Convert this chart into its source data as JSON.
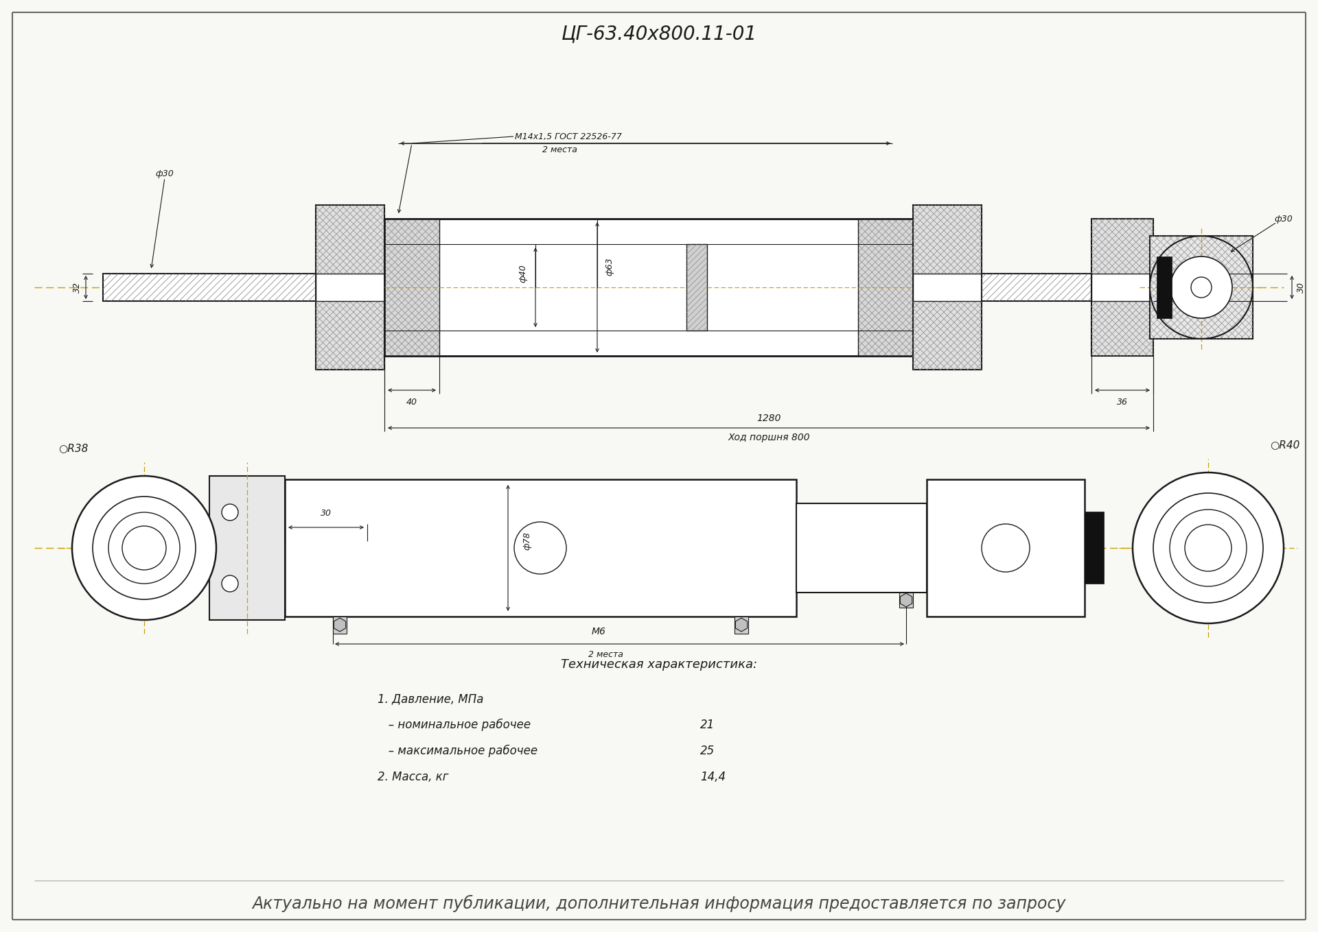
{
  "title": "ЦГ-63.40х800.11-01",
  "background_color": "#f8f8f5",
  "drawing_color": "#1a1a1a",
  "centerline_color": "#c8a000",
  "footer_text": "Актуально на момент публикации, дополнительная информация предоставляется по запросу",
  "tech_header": "Техническая характеристика:",
  "tech_items": [
    "1. Давление, МПа",
    "   – номинальное рабочее",
    "   – максимальное рабочее",
    "2. Масса, кг"
  ],
  "tech_values": [
    "",
    "21",
    "25",
    "14,4"
  ],
  "note_top": "М14х1,5 ГОСТ 22526-77",
  "two_places": "2 места",
  "d30_left": "ф30",
  "d32": "32",
  "d40_dim": "40",
  "d40_bore": "ф40",
  "d63_label": "ф63",
  "d30_right": "ф30",
  "d30_right_val": "30",
  "d36": "36",
  "dim_1280": "1280",
  "stroke": "Ход поршня 800",
  "R38": "○R38",
  "R40": "○R40",
  "d30_front": "30",
  "d78": "ф78",
  "M6": "М6",
  "two_places_bot": "2 места"
}
